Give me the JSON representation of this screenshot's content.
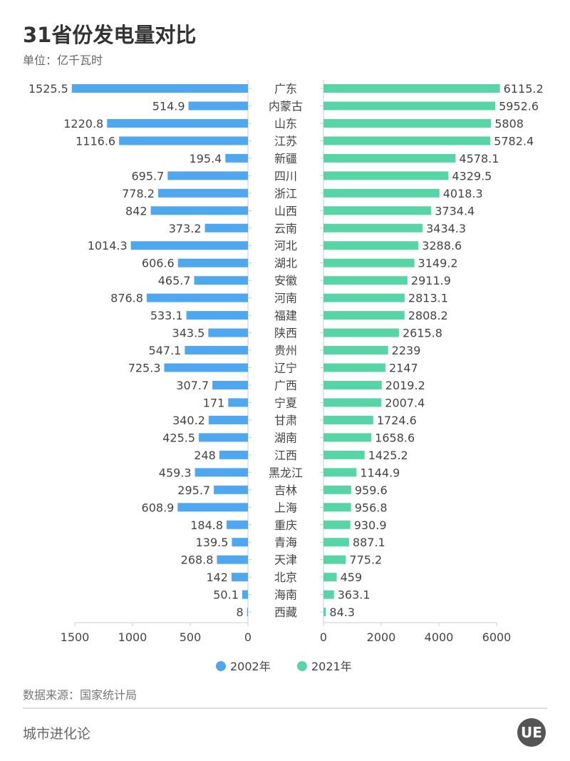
{
  "header": {
    "title": "31省份发电量对比",
    "unit": "单位：亿千瓦时"
  },
  "footer": {
    "source": "数据来源：国家统计局",
    "brand": "城市进化论",
    "logo_text": "UE"
  },
  "colors": {
    "series_2002": "#4ea7ef",
    "series_2021": "#57d5a7"
  },
  "chart_data": {
    "type": "bar",
    "orientation": "horizontal-butterfly",
    "categories": [
      "广东",
      "内蒙古",
      "山东",
      "江苏",
      "新疆",
      "四川",
      "浙江",
      "山西",
      "云南",
      "河北",
      "湖北",
      "安徽",
      "河南",
      "福建",
      "陕西",
      "贵州",
      "辽宁",
      "广西",
      "宁夏",
      "甘肃",
      "湖南",
      "江西",
      "黑龙江",
      "吉林",
      "上海",
      "重庆",
      "青海",
      "天津",
      "北京",
      "海南",
      "西藏"
    ],
    "series": [
      {
        "name": "2002年",
        "values": [
          1525.5,
          514.9,
          1220.8,
          1116.6,
          195.4,
          695.7,
          778.2,
          842,
          373.2,
          1014.3,
          606.6,
          465.7,
          876.8,
          533.1,
          343.5,
          547.1,
          725.3,
          307.7,
          171,
          340.2,
          425.5,
          248,
          459.3,
          295.7,
          608.9,
          184.8,
          139.5,
          268.8,
          142,
          50.1,
          8
        ],
        "xlim": [
          0,
          1500
        ],
        "ticks": [
          "1500",
          "1000",
          "500",
          "0"
        ]
      },
      {
        "name": "2021年",
        "values": [
          6115.2,
          5952.6,
          5808,
          5782.4,
          4578.1,
          4329.5,
          4018.3,
          3734.4,
          3434.3,
          3288.6,
          3149.2,
          2911.9,
          2813.1,
          2808.2,
          2615.8,
          2239,
          2147,
          2019.2,
          2007.4,
          1724.6,
          1658.6,
          1425.2,
          1144.9,
          959.6,
          956.8,
          930.9,
          887.1,
          775.2,
          459,
          363.1,
          84.3
        ],
        "xlim": [
          0,
          6000
        ],
        "ticks": [
          "0",
          "2000",
          "4000",
          "6000"
        ]
      }
    ],
    "title": "31省份发电量对比",
    "unit": "亿千瓦时",
    "legend": "bottom-center",
    "grid": false
  }
}
